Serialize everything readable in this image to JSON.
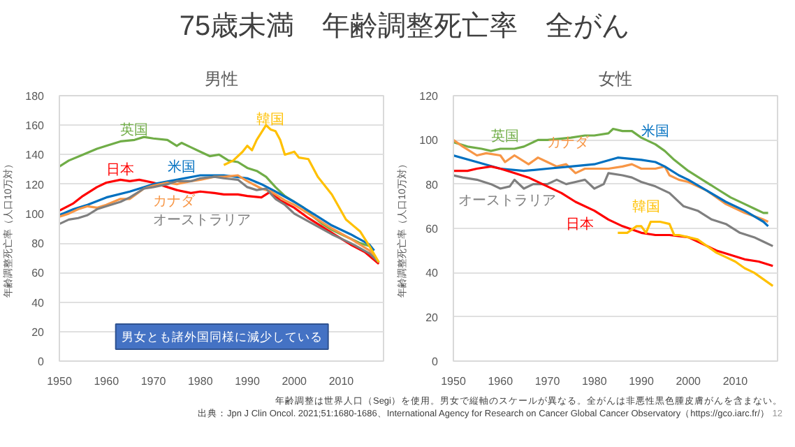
{
  "chart_data": [
    {
      "type": "line",
      "title": "75歳未満　年齢調整死亡率　全がん",
      "subtitle": "男性",
      "ylabel": "年齢調整死亡率（人口10万対）",
      "xlim": [
        1950,
        2019
      ],
      "xticks": [
        1950,
        1960,
        1970,
        1980,
        1990,
        2000,
        2010
      ],
      "ylim": [
        0,
        180
      ],
      "yticks": [
        0,
        20,
        40,
        60,
        80,
        100,
        120,
        140,
        160,
        180
      ],
      "grid": "y",
      "legend": false,
      "annotations": [
        "男女とも諸外国同様に減少している"
      ],
      "series": [
        {
          "name": "英国",
          "color": "#70ad47",
          "x": [
            1950,
            1952,
            1955,
            1958,
            1960,
            1963,
            1966,
            1968,
            1970,
            1973,
            1975,
            1976,
            1978,
            1980,
            1982,
            1984,
            1986,
            1988,
            1990,
            1992,
            1994,
            1996,
            1998,
            2000,
            2002,
            2004,
            2006,
            2008,
            2010,
            2012,
            2014,
            2016
          ],
          "values": [
            132,
            136,
            140,
            144,
            146,
            149,
            150,
            152,
            151,
            150,
            146,
            148,
            145,
            142,
            139,
            140,
            136,
            135,
            131,
            129,
            125,
            118,
            112,
            108,
            104,
            98,
            93,
            89,
            86,
            83,
            80,
            78
          ]
        },
        {
          "name": "日本",
          "color": "#ff0000",
          "x": [
            1950,
            1953,
            1955,
            1958,
            1960,
            1963,
            1965,
            1967,
            1970,
            1973,
            1975,
            1978,
            1980,
            1983,
            1985,
            1988,
            1990,
            1993,
            1995,
            1997,
            2000,
            2003,
            2006,
            2009,
            2012,
            2015,
            2018
          ],
          "values": [
            102,
            107,
            112,
            118,
            121,
            123,
            122,
            123,
            121,
            118,
            116,
            114,
            115,
            114,
            113,
            113,
            112,
            111,
            115,
            109,
            104,
            97,
            91,
            85,
            79,
            74,
            66
          ]
        },
        {
          "name": "米国",
          "color": "#0070c0",
          "x": [
            1950,
            1953,
            1956,
            1960,
            1965,
            1970,
            1975,
            1980,
            1985,
            1990,
            1993,
            1996,
            2000,
            2004,
            2008,
            2012,
            2016,
            2017
          ],
          "values": [
            99,
            103,
            106,
            111,
            115,
            120,
            123,
            126,
            126,
            124,
            120,
            115,
            108,
            100,
            92,
            86,
            79,
            75
          ]
        },
        {
          "name": "カナダ",
          "color": "#f79646",
          "x": [
            1950,
            1952,
            1954,
            1956,
            1958,
            1960,
            1963,
            1965,
            1968,
            1970,
            1973,
            1975,
            1978,
            1980,
            1983,
            1985,
            1988,
            1990,
            1993,
            1995,
            1998,
            2000,
            2004,
            2008,
            2012,
            2016,
            2018
          ],
          "values": [
            98,
            100,
            103,
            105,
            104,
            106,
            110,
            110,
            117,
            119,
            121,
            120,
            122,
            123,
            125,
            125,
            126,
            122,
            117,
            115,
            109,
            106,
            98,
            90,
            83,
            75,
            67
          ]
        },
        {
          "name": "オーストラリア",
          "color": "#7f7f7f",
          "x": [
            1950,
            1952,
            1954,
            1956,
            1958,
            1960,
            1963,
            1965,
            1968,
            1970,
            1973,
            1975,
            1978,
            1980,
            1983,
            1985,
            1988,
            1990,
            1992,
            1994,
            1996,
            1998,
            2000,
            2004,
            2008,
            2012,
            2016,
            2018
          ],
          "values": [
            93,
            96,
            97,
            99,
            103,
            105,
            108,
            111,
            117,
            118,
            120,
            122,
            122,
            124,
            125,
            124,
            123,
            118,
            116,
            117,
            110,
            106,
            100,
            93,
            86,
            80,
            73,
            67
          ]
        },
        {
          "name": "韓国",
          "color": "#ffc000",
          "x": [
            1985,
            1987,
            1989,
            1990,
            1991,
            1992,
            1994,
            1995,
            1996,
            1997,
            1998,
            2000,
            2001,
            2003,
            2005,
            2008,
            2011,
            2014,
            2016,
            2018
          ],
          "values": [
            133,
            136,
            142,
            146,
            143,
            150,
            160,
            157,
            156,
            150,
            140,
            142,
            138,
            137,
            125,
            113,
            96,
            88,
            78,
            67
          ]
        }
      ]
    },
    {
      "type": "line",
      "title": "女性",
      "ylabel": "年齢調整死亡率（人口10万対）",
      "xlim": [
        1950,
        2019
      ],
      "xticks": [
        1950,
        1960,
        1970,
        1980,
        1990,
        2000,
        2010
      ],
      "ylim": [
        0,
        120
      ],
      "yticks": [
        0,
        20,
        40,
        60,
        80,
        100,
        120
      ],
      "grid": "y",
      "legend": false,
      "annotations": [
        "年齢調整は世界人口（Segi）を使用。男女で縦軸のスケールが異なる。全がんは非悪性黒色腫皮膚がんを含まない。",
        "出典：Jpn J Clin Oncol. 2021;51:1680-1686、International Agency for Research on Cancer Global Cancer Observatory（https://gco.iarc.fr/）",
        "12"
      ],
      "series": [
        {
          "name": "英国",
          "color": "#70ad47",
          "x": [
            1950,
            1953,
            1956,
            1958,
            1960,
            1963,
            1965,
            1968,
            1970,
            1975,
            1978,
            1980,
            1983,
            1984,
            1986,
            1988,
            1990,
            1993,
            1995,
            1997,
            2000,
            2003,
            2006,
            2009,
            2012,
            2014,
            2016,
            2017
          ],
          "values": [
            99,
            97,
            96,
            95,
            96,
            96,
            97,
            100,
            100,
            101,
            102,
            102,
            103,
            105,
            104,
            104,
            101,
            98,
            95,
            91,
            86,
            82,
            78,
            74,
            71,
            69,
            67,
            67
          ]
        },
        {
          "name": "カナダ",
          "color": "#f79646",
          "x": [
            1950,
            1952,
            1955,
            1957,
            1960,
            1961,
            1963,
            1966,
            1968,
            1970,
            1972,
            1974,
            1976,
            1978,
            1980,
            1983,
            1986,
            1988,
            1990,
            1993,
            1995,
            1996,
            1998,
            2000,
            2004,
            2008,
            2012,
            2016,
            2017
          ],
          "values": [
            100,
            97,
            93,
            94,
            93,
            90,
            93,
            89,
            92,
            90,
            88,
            89,
            85,
            87,
            87,
            87,
            88,
            89,
            87,
            87,
            88,
            84,
            82,
            81,
            77,
            71,
            67,
            64,
            63
          ]
        },
        {
          "name": "米国",
          "color": "#0070c0",
          "x": [
            1950,
            1955,
            1960,
            1965,
            1970,
            1975,
            1980,
            1985,
            1990,
            1993,
            1995,
            1998,
            2000,
            2004,
            2008,
            2012,
            2016,
            2017
          ],
          "values": [
            93,
            90,
            87,
            86,
            87,
            88,
            89,
            92,
            91,
            90,
            88,
            84,
            82,
            77,
            72,
            68,
            63,
            61
          ]
        },
        {
          "name": "オーストラリア",
          "color": "#7f7f7f",
          "x": [
            1950,
            1952,
            1955,
            1958,
            1960,
            1962,
            1963,
            1965,
            1967,
            1970,
            1972,
            1974,
            1976,
            1978,
            1980,
            1982,
            1983,
            1986,
            1988,
            1990,
            1993,
            1996,
            1999,
            2002,
            2005,
            2008,
            2011,
            2014,
            2016,
            2018
          ],
          "values": [
            84,
            83,
            82,
            80,
            78,
            79,
            82,
            78,
            80,
            80,
            82,
            80,
            81,
            82,
            78,
            80,
            85,
            84,
            83,
            81,
            79,
            76,
            70,
            68,
            64,
            62,
            58,
            56,
            54,
            52
          ]
        },
        {
          "name": "日本",
          "color": "#ff0000",
          "x": [
            1950,
            1953,
            1955,
            1958,
            1960,
            1963,
            1966,
            1970,
            1973,
            1976,
            1980,
            1983,
            1986,
            1990,
            1993,
            1996,
            2000,
            2003,
            2006,
            2009,
            2012,
            2015,
            2018
          ],
          "values": [
            86,
            86,
            87,
            88,
            87,
            85,
            83,
            79,
            76,
            72,
            68,
            64,
            61,
            58,
            57,
            57,
            56,
            53,
            50,
            48,
            46,
            45,
            43
          ]
        },
        {
          "name": "韓国",
          "color": "#ffc000",
          "x": [
            1985,
            1987,
            1989,
            1990,
            1991,
            1992,
            1994,
            1996,
            1997,
            1998,
            2000,
            2002,
            2004,
            2006,
            2008,
            2010,
            2012,
            2014,
            2016,
            2018
          ],
          "values": [
            58,
            58,
            61,
            61,
            58,
            63,
            63,
            62,
            57,
            57,
            56,
            55,
            52,
            49,
            47,
            45,
            42,
            40,
            37,
            34
          ]
        }
      ]
    }
  ]
}
